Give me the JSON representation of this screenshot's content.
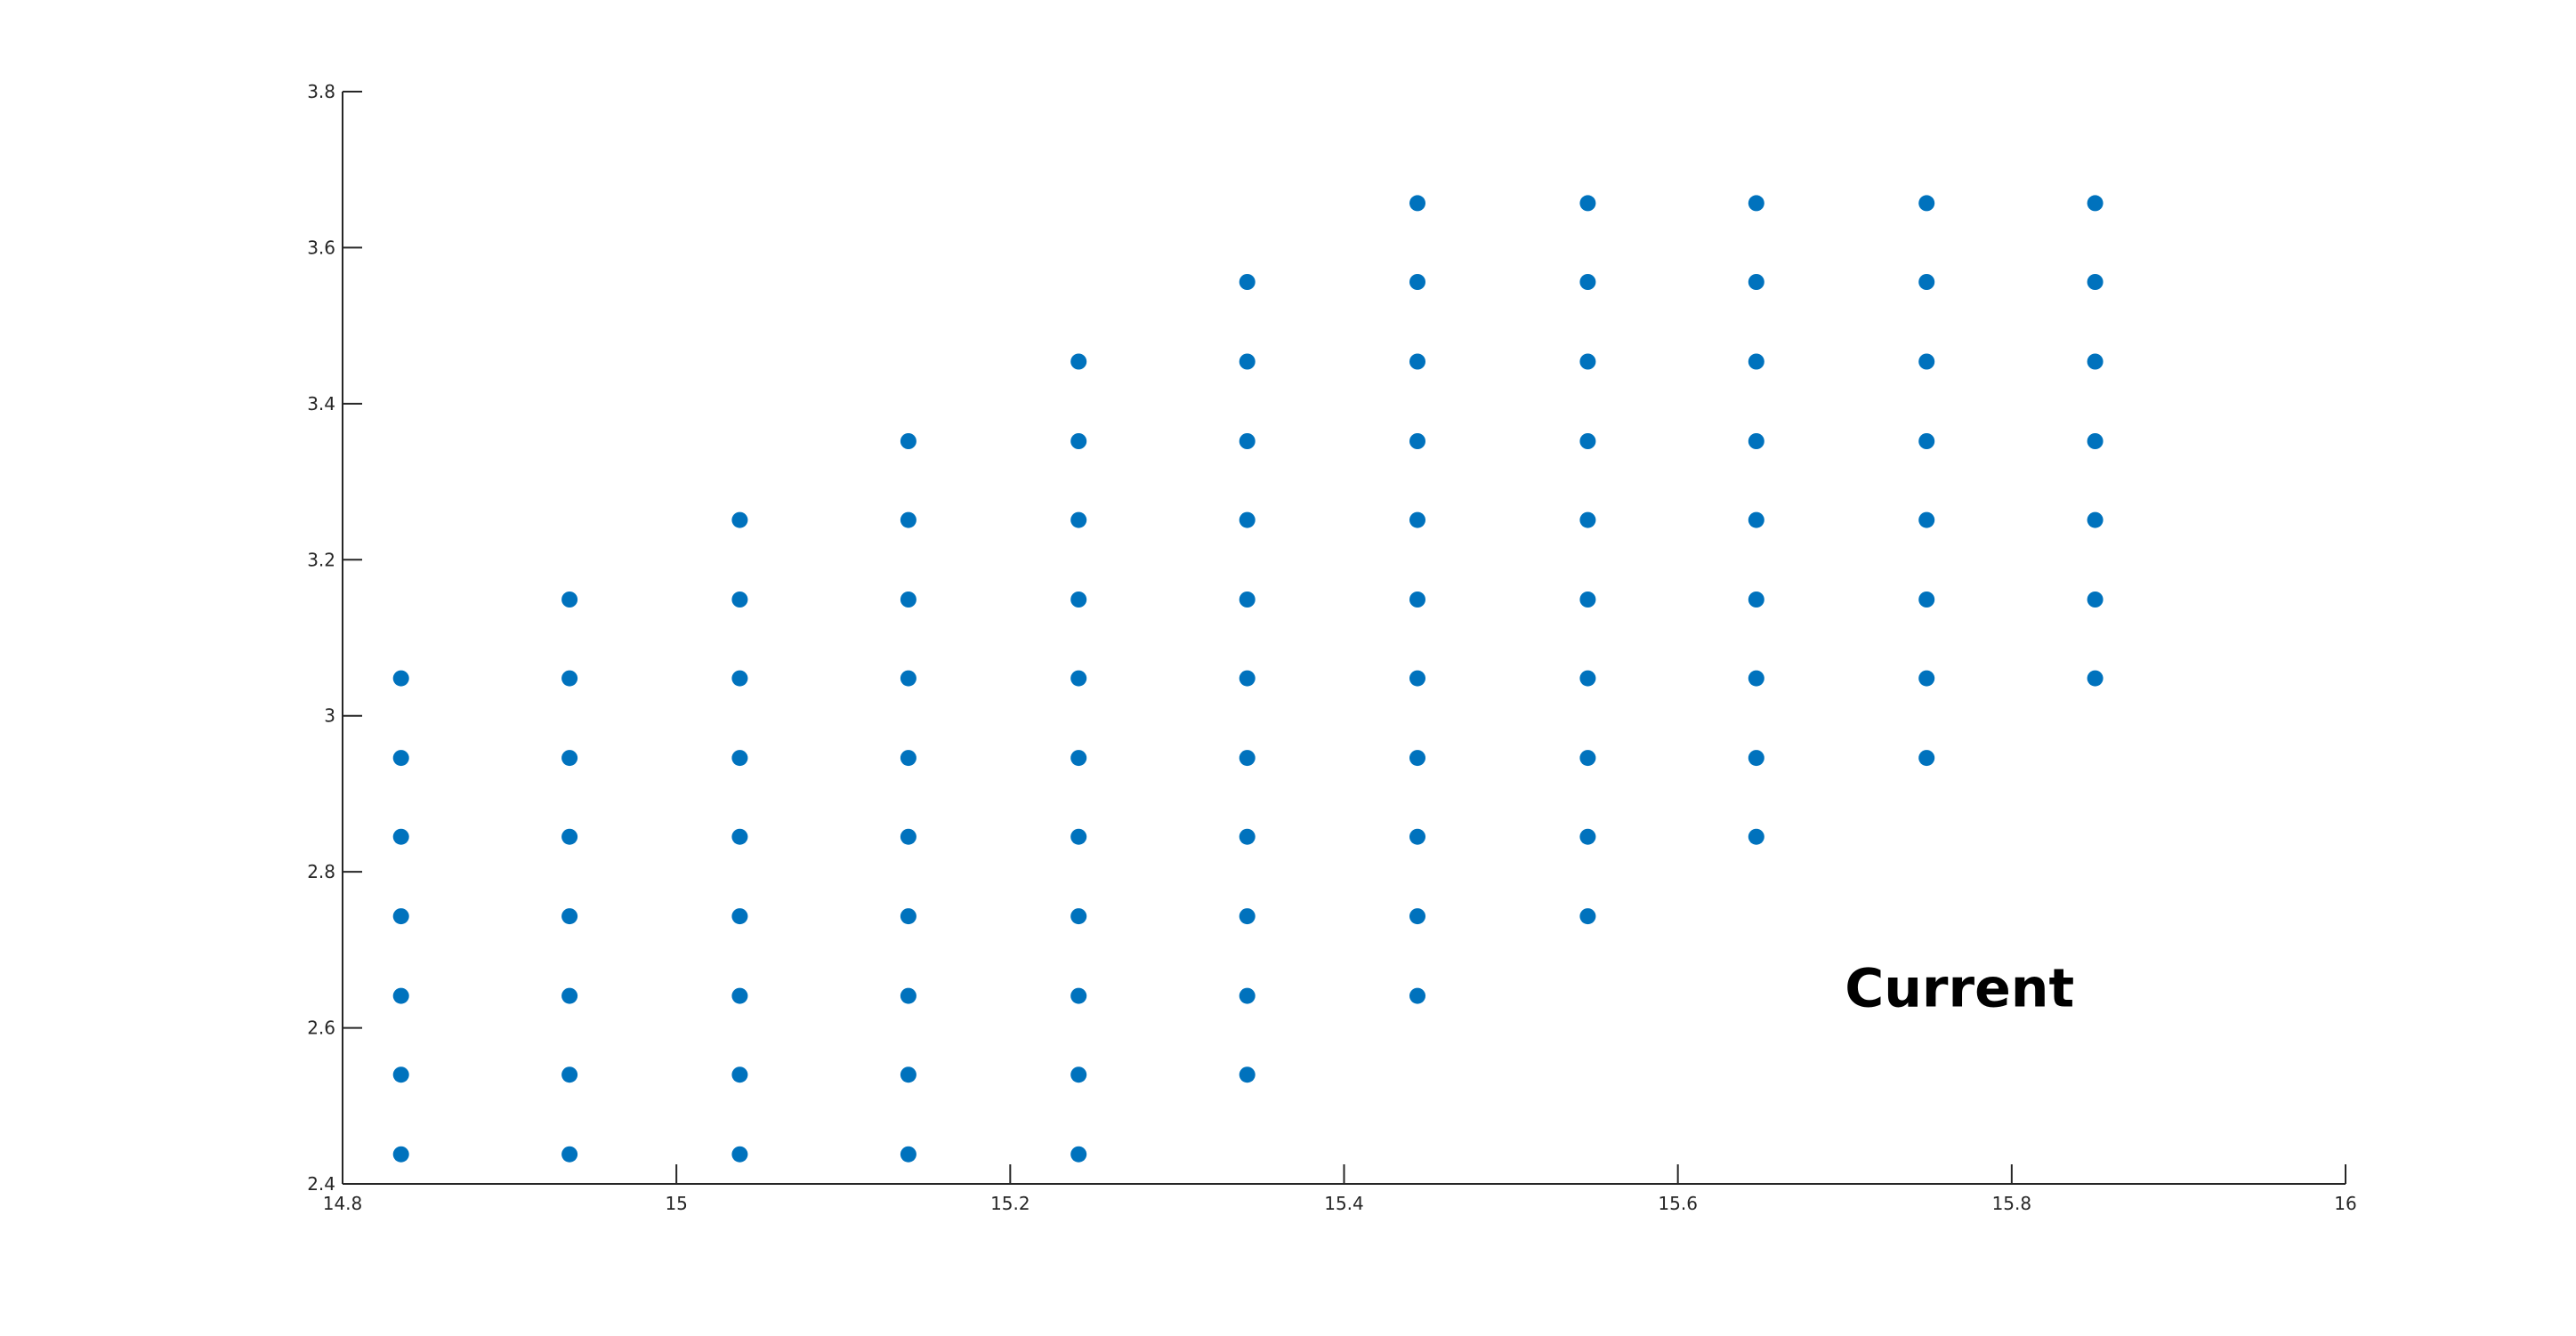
{
  "chart_data": {
    "type": "scatter",
    "title": "",
    "xlabel": "",
    "ylabel": "",
    "xlim": [
      14.8,
      16
    ],
    "ylim": [
      2.4,
      3.8
    ],
    "xticks": [
      "14.8",
      "15",
      "15.2",
      "15.4",
      "15.6",
      "15.8",
      "16"
    ],
    "yticks": [
      "2.4",
      "2.6",
      "2.8",
      "3",
      "3.2",
      "3.4",
      "3.6",
      "3.8"
    ],
    "grid": false,
    "legend": "none",
    "marker_color": "#0072BD",
    "annotation": "Current",
    "annotation_anchor": [
      15.7,
      2.65
    ],
    "columns": [
      {
        "x": 14.835,
        "y": [
          2.438,
          2.54,
          2.641,
          2.743,
          2.845,
          2.946,
          3.048
        ]
      },
      {
        "x": 14.936,
        "y": [
          2.438,
          2.54,
          2.641,
          2.743,
          2.845,
          2.946,
          3.048,
          3.149
        ]
      },
      {
        "x": 15.038,
        "y": [
          2.438,
          2.54,
          2.641,
          2.743,
          2.845,
          2.946,
          3.048,
          3.149,
          3.251
        ]
      },
      {
        "x": 15.139,
        "y": [
          2.438,
          2.54,
          2.641,
          2.743,
          2.845,
          2.946,
          3.048,
          3.149,
          3.251,
          3.352
        ]
      },
      {
        "x": 15.241,
        "y": [
          2.438,
          2.54,
          2.641,
          2.743,
          2.845,
          2.946,
          3.048,
          3.149,
          3.251,
          3.352,
          3.454
        ]
      },
      {
        "x": 15.342,
        "y": [
          2.54,
          2.641,
          2.743,
          2.845,
          2.946,
          3.048,
          3.149,
          3.251,
          3.352,
          3.454,
          3.556
        ]
      },
      {
        "x": 15.444,
        "y": [
          2.641,
          2.743,
          2.845,
          2.946,
          3.048,
          3.149,
          3.251,
          3.352,
          3.454,
          3.556,
          3.657
        ]
      },
      {
        "x": 15.546,
        "y": [
          2.743,
          2.845,
          2.946,
          3.048,
          3.149,
          3.251,
          3.352,
          3.454,
          3.556,
          3.657
        ]
      },
      {
        "x": 15.647,
        "y": [
          2.845,
          2.946,
          3.048,
          3.149,
          3.251,
          3.352,
          3.454,
          3.556,
          3.657
        ]
      },
      {
        "x": 15.749,
        "y": [
          2.946,
          3.048,
          3.149,
          3.251,
          3.352,
          3.454,
          3.556,
          3.657
        ]
      },
      {
        "x": 15.85,
        "y": [
          3.048,
          3.149,
          3.251,
          3.352,
          3.454,
          3.556,
          3.657
        ]
      }
    ]
  }
}
